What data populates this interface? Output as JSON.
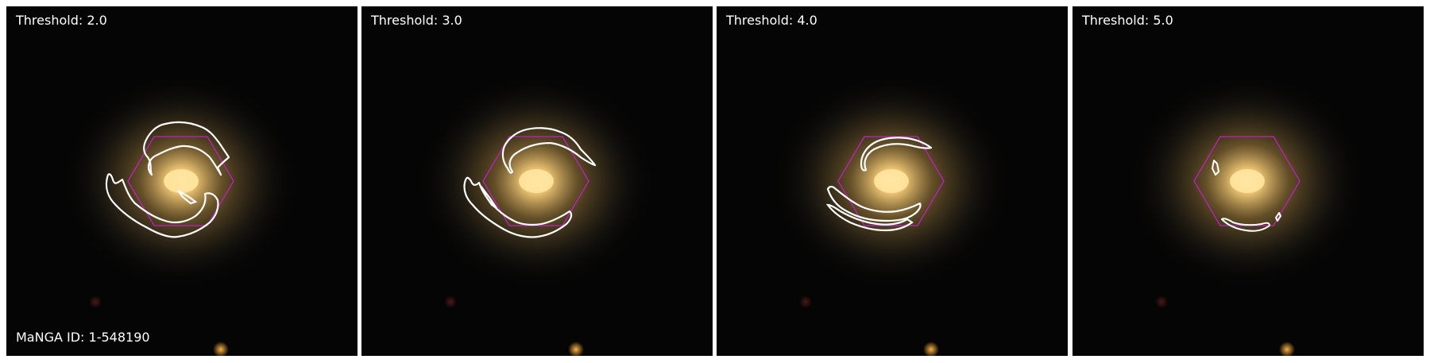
{
  "figure": {
    "manga_id_label": "MaNGA ID: 1-548190",
    "panels": [
      {
        "threshold_label": "Threshold: 2.0"
      },
      {
        "threshold_label": "Threshold: 3.0"
      },
      {
        "threshold_label": "Threshold: 4.0"
      },
      {
        "threshold_label": "Threshold: 5.0"
      }
    ],
    "colors": {
      "contour": "#ffffff",
      "ifu_hexagon": "#c020c0",
      "sky_background": "#050505",
      "galaxy_core": "#ffe6a0"
    }
  }
}
